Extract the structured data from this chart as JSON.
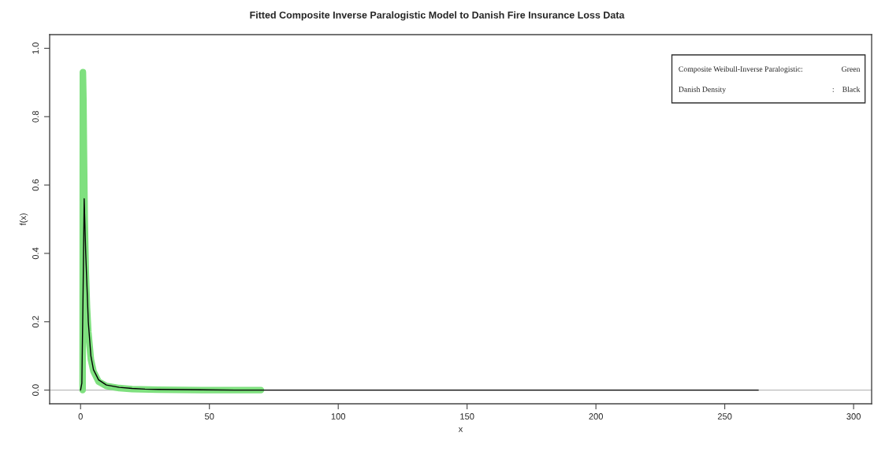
{
  "chart_data": {
    "type": "line",
    "title": "Fitted Composite Inverse Paralogistic Model to Danish Fire Insurance Loss Data",
    "xlabel": "x",
    "ylabel": "f(x)",
    "series": [
      {
        "color": "#7fe07f",
        "x": [
          0.8,
          0.9,
          1.1,
          1.3,
          1.6,
          2,
          2.5,
          3,
          4,
          5,
          7,
          10,
          15,
          20,
          30,
          50,
          70
        ],
        "values": [
          0,
          0.93,
          0.85,
          0.7,
          0.5,
          0.35,
          0.24,
          0.17,
          0.09,
          0.055,
          0.025,
          0.012,
          0.006,
          0.003,
          0.001,
          0,
          0
        ]
      },
      {
        "color": "#000000",
        "x": [
          0,
          0.5,
          1.0,
          1.4,
          2,
          3,
          4,
          5,
          7,
          10,
          15,
          20,
          25,
          30,
          60,
          100,
          263
        ],
        "values": [
          0,
          0.02,
          0.3,
          0.56,
          0.4,
          0.2,
          0.1,
          0.06,
          0.03,
          0.015,
          0.008,
          0.005,
          0.003,
          0.002,
          0,
          0,
          0
        ]
      }
    ],
    "ref_lines": [
      {
        "axis": "y",
        "value": 0,
        "color": "#bbbbbb"
      }
    ],
    "annotations": [
      "Composite Weibull-Inverse Paralogistic:",
      "Green",
      "Danish Density",
      ":",
      "Black"
    ],
    "xlim": [
      -12,
      307
    ],
    "ylim": [
      -0.04,
      1.04
    ],
    "xticks": [
      0,
      50,
      100,
      150,
      200,
      250,
      300
    ],
    "yticks": [
      {
        "value": 0,
        "label": "0.0"
      },
      {
        "value": 0.2,
        "label": "0.2"
      },
      {
        "value": 0.4,
        "label": "0.4"
      },
      {
        "value": 0.6,
        "label": "0.6"
      },
      {
        "value": 0.8,
        "label": "0.8"
      },
      {
        "value": 1.0,
        "label": "1.0"
      }
    ],
    "grid": false
  }
}
